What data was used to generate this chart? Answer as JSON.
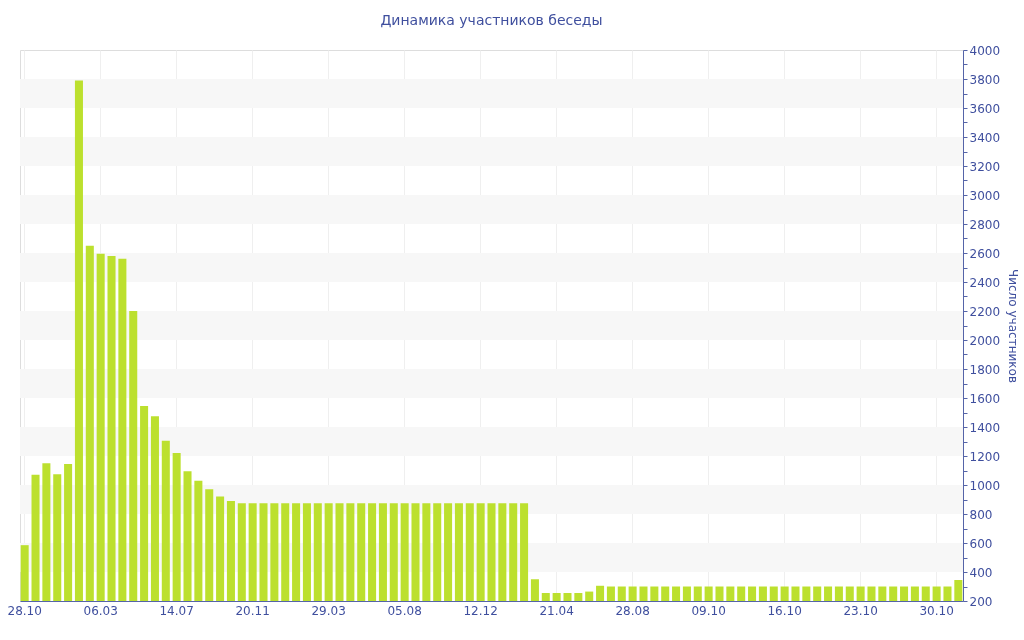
{
  "chart_data": {
    "type": "bar",
    "title": "Динамика участников беседы",
    "ylabel": "Число участников",
    "categories": [
      "28.10",
      null,
      null,
      null,
      null,
      null,
      null,
      "06.03",
      null,
      null,
      null,
      null,
      null,
      null,
      "14.07",
      null,
      null,
      null,
      null,
      null,
      null,
      "20.11",
      null,
      null,
      null,
      null,
      null,
      null,
      "29.03",
      null,
      null,
      null,
      null,
      null,
      null,
      "05.08",
      null,
      null,
      null,
      null,
      null,
      null,
      "12.12",
      null,
      null,
      null,
      null,
      null,
      null,
      "21.04",
      null,
      null,
      null,
      null,
      null,
      null,
      "28.08",
      null,
      null,
      null,
      null,
      null,
      null,
      "09.10",
      null,
      null,
      null,
      null,
      null,
      null,
      "16.10",
      null,
      null,
      null,
      null,
      null,
      null,
      "23.10",
      null,
      null,
      null,
      null,
      null,
      null,
      "30.10",
      null,
      null
    ],
    "values": [
      585,
      1070,
      1150,
      1075,
      1145,
      3790,
      2650,
      2595,
      2580,
      2560,
      2200,
      1545,
      1475,
      1305,
      1220,
      1095,
      1030,
      970,
      920,
      890,
      875,
      875,
      875,
      875,
      875,
      875,
      875,
      875,
      875,
      875,
      875,
      875,
      875,
      875,
      875,
      875,
      875,
      875,
      875,
      875,
      875,
      875,
      875,
      875,
      875,
      875,
      875,
      350,
      255,
      255,
      255,
      255,
      265,
      305,
      300,
      300,
      300,
      300,
      300,
      300,
      300,
      300,
      300,
      300,
      300,
      300,
      300,
      300,
      300,
      300,
      300,
      300,
      300,
      300,
      300,
      300,
      300,
      300,
      300,
      300,
      300,
      300,
      300,
      300,
      300,
      300,
      345
    ],
    "color": "#bce02e",
    "ylim": [
      200,
      4000
    ],
    "yticks": [
      200,
      {
        "value": 300,
        "label": null
      },
      400,
      {
        "value": 500,
        "label": null
      },
      600,
      {
        "value": 700,
        "label": null
      },
      800,
      {
        "value": 900,
        "label": null
      },
      1000,
      {
        "value": 1100,
        "label": null
      },
      1200,
      {
        "value": 1300,
        "label": null
      },
      1400,
      {
        "value": 1500,
        "label": null
      },
      1600,
      {
        "value": 1700,
        "label": null
      },
      1800,
      {
        "value": 1900,
        "label": null
      },
      2000,
      {
        "value": 2100,
        "label": null
      },
      2200,
      {
        "value": 2300,
        "label": null
      },
      2400,
      {
        "value": 2500,
        "label": null
      },
      2600,
      {
        "value": 2700,
        "label": null
      },
      2800,
      {
        "value": 2900,
        "label": null
      },
      3000,
      {
        "value": 3100,
        "label": null
      },
      3200,
      {
        "value": 3300,
        "label": null
      },
      3400,
      {
        "value": 3500,
        "label": null
      },
      3600,
      {
        "value": 3700,
        "label": null
      },
      3800,
      {
        "value": 3900,
        "label": null
      },
      4000
    ],
    "grid": true
  }
}
